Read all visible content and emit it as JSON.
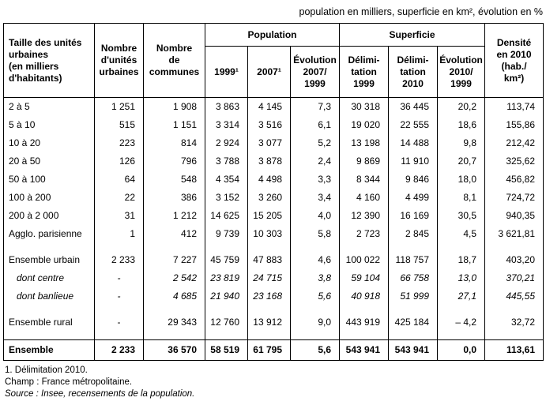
{
  "caption": "population en milliers, superficie en km², évolution en %",
  "table": {
    "headers": {
      "size": "Taille des unités\nurbaines\n(en milliers\nd'habitants)",
      "nb_unites": "Nombre\nd'unités\nurbaines",
      "nb_communes": "Nombre\nde\ncommunes",
      "population_group": "Population",
      "superficie_group": "Superficie",
      "pop_1999": "1999¹",
      "pop_2007": "2007¹",
      "pop_evolution": "Évolution\n2007/\n1999",
      "sup_delim_1999": "Délimi-\ntation\n1999",
      "sup_delim_2010": "Délimi-\ntation\n2010",
      "sup_evolution": "Évolution\n2010/\n1999",
      "densite": "Densité\nen 2010\n(hab./\nkm²)"
    },
    "rows": [
      {
        "label": "2 à 5",
        "values": [
          "1 251",
          "1 908",
          "3 863",
          "4 145",
          "7,3",
          "30 318",
          "36 445",
          "20,2",
          "113,74"
        ]
      },
      {
        "label": "5 à 10",
        "values": [
          "515",
          "1 151",
          "3 314",
          "3 516",
          "6,1",
          "19 020",
          "22 555",
          "18,6",
          "155,86"
        ]
      },
      {
        "label": "10 à 20",
        "values": [
          "223",
          "814",
          "2 924",
          "3 077",
          "5,2",
          "13 198",
          "14 488",
          "9,8",
          "212,42"
        ]
      },
      {
        "label": "20 à 50",
        "values": [
          "126",
          "796",
          "3 788",
          "3 878",
          "2,4",
          "9 869",
          "11 910",
          "20,7",
          "325,62"
        ]
      },
      {
        "label": "50 à 100",
        "values": [
          "64",
          "548",
          "4 354",
          "4 498",
          "3,3",
          "8 344",
          "9 846",
          "18,0",
          "456,82"
        ]
      },
      {
        "label": "100 à 200",
        "values": [
          "22",
          "386",
          "3 152",
          "3 260",
          "3,4",
          "4 160",
          "4 499",
          "8,1",
          "724,72"
        ]
      },
      {
        "label": "200 à 2 000",
        "values": [
          "31",
          "1 212",
          "14 625",
          "15 205",
          "4,0",
          "12 390",
          "16 169",
          "30,5",
          "940,35"
        ]
      },
      {
        "label": "Agglo. parisienne",
        "values": [
          "1",
          "412",
          "9 739",
          "10 303",
          "5,8",
          "2 723",
          "2 845",
          "4,5",
          "3 621,81"
        ]
      },
      {
        "spacer": true
      },
      {
        "label": "Ensemble urbain",
        "values": [
          "2 233",
          "7 227",
          "45 759",
          "47 883",
          "4,6",
          "100 022",
          "118 757",
          "18,7",
          "403,20"
        ]
      },
      {
        "label": "dont centre",
        "style": "italic",
        "values": [
          "-",
          "2 542",
          "23 819",
          "24 715",
          "3,8",
          "59 104",
          "66 758",
          "13,0",
          "370,21"
        ]
      },
      {
        "label": "dont banlieue",
        "style": "italic",
        "values": [
          "-",
          "4 685",
          "21 940",
          "23 168",
          "5,6",
          "40 918",
          "51 999",
          "27,1",
          "445,55"
        ]
      },
      {
        "spacer": true
      },
      {
        "label": "Ensemble rural",
        "values": [
          "-",
          "29 343",
          "12 760",
          "13 912",
          "9,0",
          "443 919",
          "425 184",
          "– 4,2",
          "32,72"
        ]
      },
      {
        "spacer": true
      },
      {
        "label": "Ensemble",
        "style": "total",
        "values": [
          "2 233",
          "36 570",
          "58 519",
          "61 795",
          "5,6",
          "543 941",
          "543 941",
          "0,0",
          "113,61"
        ]
      }
    ]
  },
  "footnotes": [
    "1. Délimitation 2010.",
    "Champ : France métropolitaine.",
    "Source : Insee, recensements de la population."
  ]
}
